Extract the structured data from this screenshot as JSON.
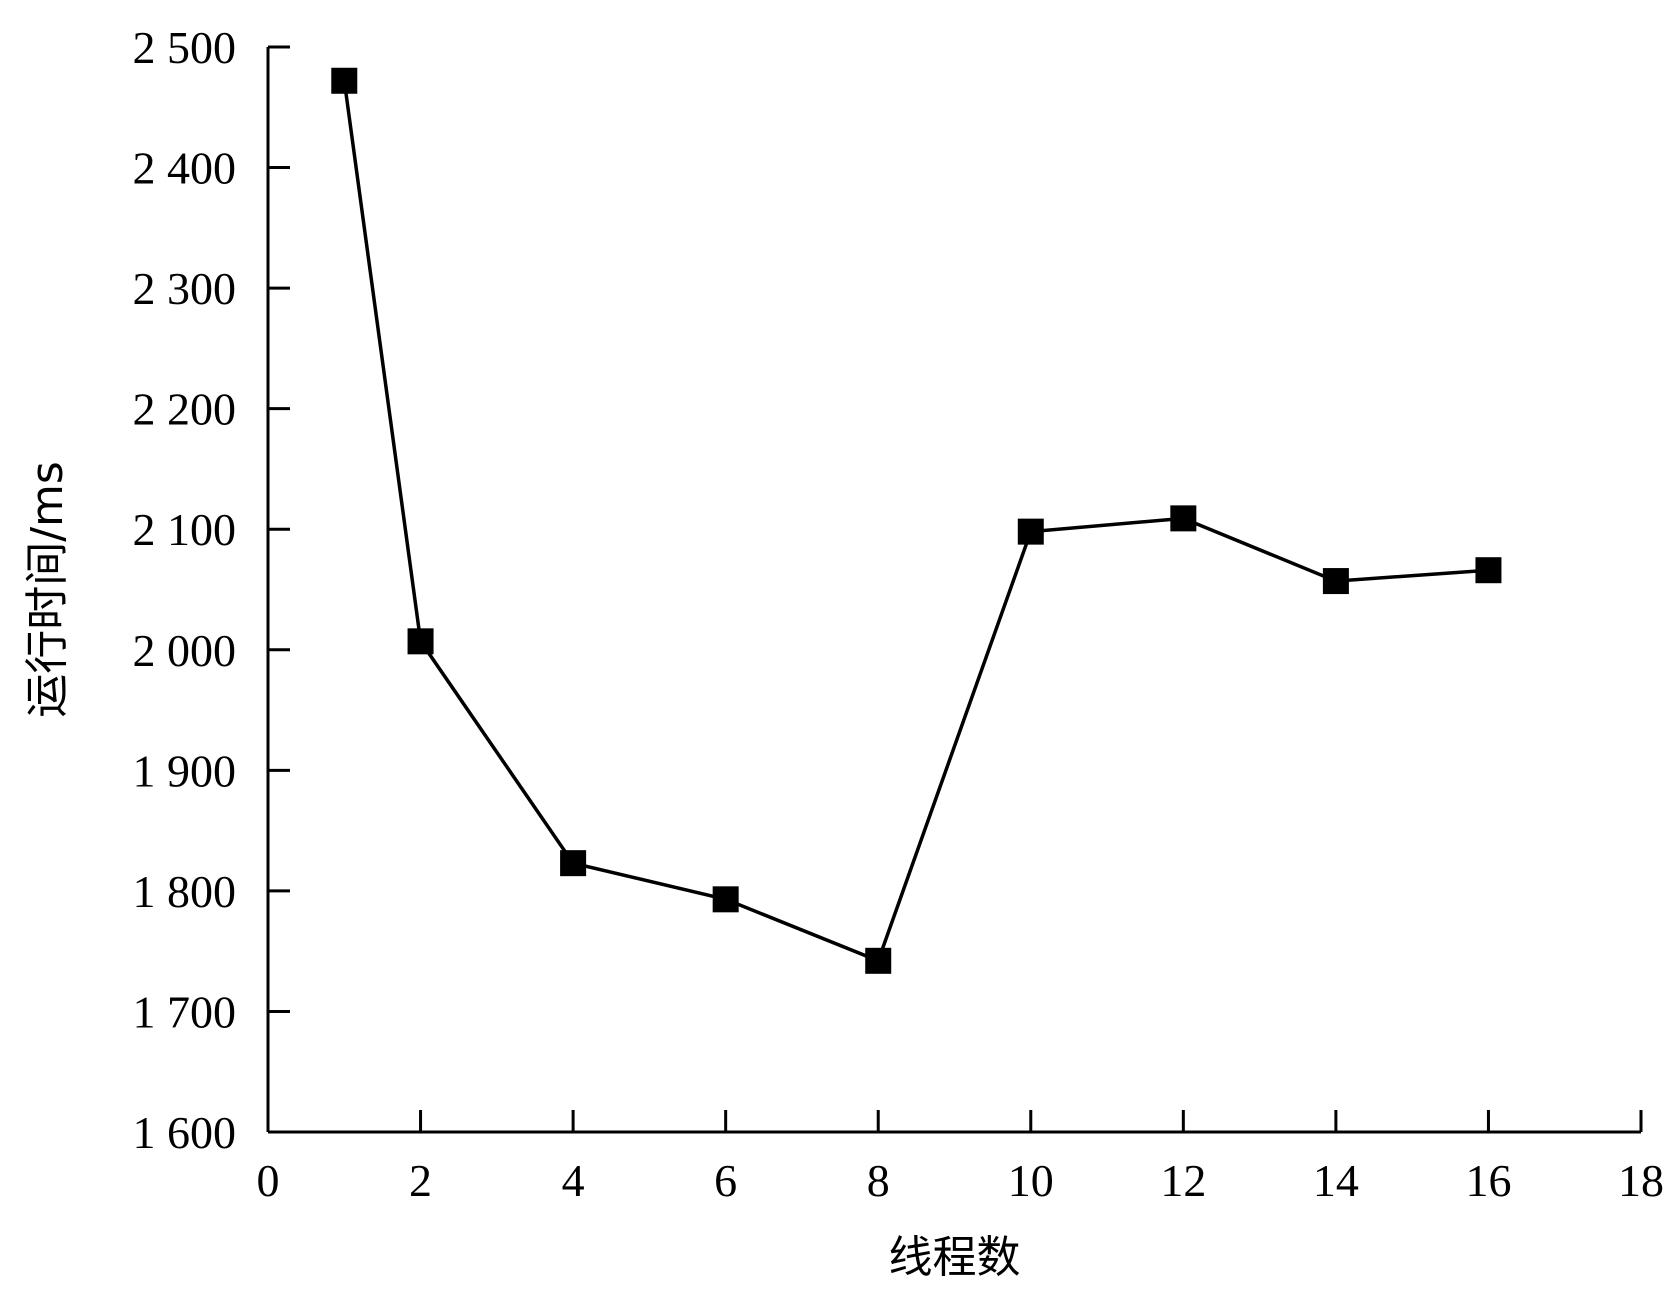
{
  "chart_data": {
    "type": "line",
    "xlabel": "线程数",
    "ylabel": "运行时间/ms",
    "xlim": [
      0,
      18
    ],
    "ylim": [
      1600,
      2500
    ],
    "xticks": [
      0,
      2,
      4,
      6,
      8,
      10,
      12,
      14,
      16,
      18
    ],
    "xtick_labels": [
      "0",
      "2",
      "4",
      "6",
      "8",
      "10",
      "12",
      "14",
      "16",
      "18"
    ],
    "yticks": [
      1600,
      1700,
      1800,
      1900,
      2000,
      2100,
      2200,
      2300,
      2400,
      2500
    ],
    "ytick_labels": [
      "1 600",
      "1 700",
      "1 800",
      "1 900",
      "2 000",
      "2 100",
      "2 200",
      "2 300",
      "2 400",
      "2 500"
    ],
    "grid": false,
    "series": [
      {
        "marker": "square",
        "color": "#000000",
        "x": [
          1,
          2,
          4,
          6,
          8,
          10,
          12,
          14,
          16
        ],
        "y": [
          2472,
          2007,
          1823,
          1793,
          1742,
          2098,
          2109,
          2057,
          2066
        ]
      }
    ]
  }
}
